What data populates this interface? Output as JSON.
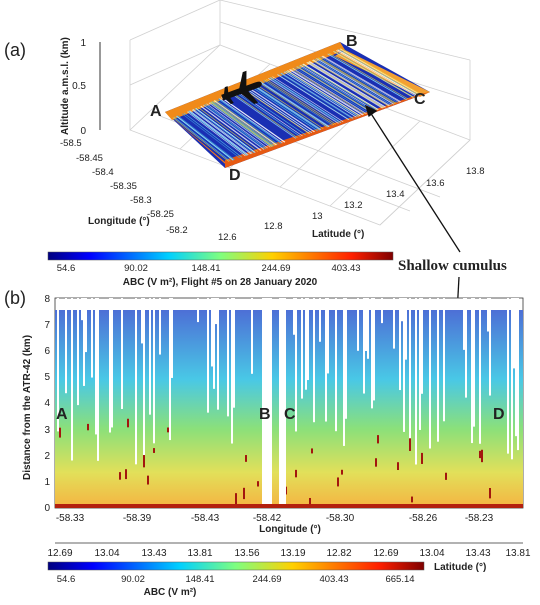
{
  "panel_a": {
    "label": "(a)",
    "zlabel": "Altitude a.m.s.l. (km)",
    "xlabel": "Longitude (°)",
    "ylabel": "Latitude (°)",
    "z_ticks": [
      "0",
      "0.5",
      "1"
    ],
    "lon_ticks": [
      "-58.5",
      "-58.45",
      "-58.4",
      "-58.35",
      "-58.3",
      "-58.25",
      "-58.2"
    ],
    "lat_ticks": [
      "12.6",
      "12.8",
      "13",
      "13.2",
      "13.4",
      "13.6",
      "13.8"
    ],
    "corners": {
      "a": "A",
      "b": "B",
      "c": "C",
      "d": "D"
    },
    "colorbar": {
      "ticks": [
        "54.6",
        "90.02",
        "148.41",
        "244.69",
        "403.43"
      ],
      "label": "ABC (V m²), Flight #5 on 28 January 2020"
    }
  },
  "annotation": {
    "text": "Shallow cumulus"
  },
  "panel_b": {
    "label": "(b)",
    "ylabel": "Distance from the ATR-42 (km)",
    "xlabel": "Longitude (°)",
    "y_ticks": [
      "0",
      "1",
      "2",
      "3",
      "4",
      "5",
      "6",
      "7",
      "8"
    ],
    "lon_ticks": [
      "-58.33",
      "-58.39",
      "-58.43",
      "-58.42",
      "-58.30",
      "-58.26",
      "-58.23"
    ],
    "segments": {
      "a": "A",
      "b": "B",
      "c": "C",
      "d": "D"
    },
    "lat_ticks": [
      "12.69",
      "13.04",
      "13.43",
      "13.81",
      "13.56",
      "13.19",
      "12.82",
      "12.69",
      "13.04",
      "13.43",
      "13.81"
    ],
    "lat_label": "Latitude (°)",
    "colorbar": {
      "ticks": [
        "54.6",
        "90.02",
        "148.41",
        "244.69",
        "403.43",
        "665.14"
      ],
      "label": "ABC (V m²)"
    }
  }
}
